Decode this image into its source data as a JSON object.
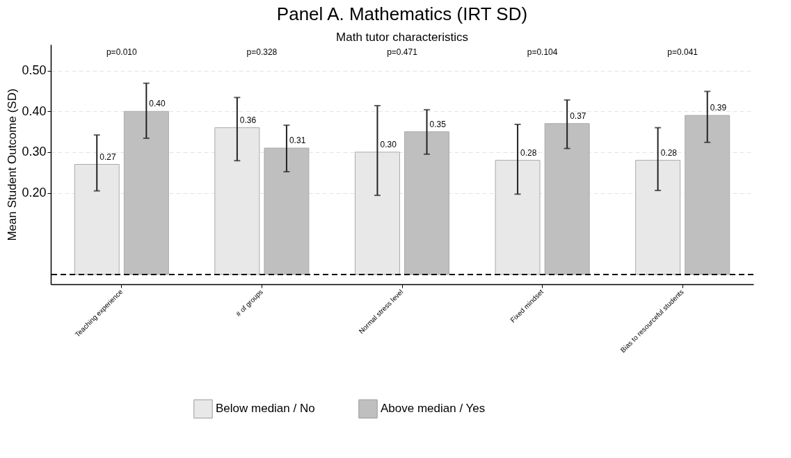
{
  "chart_data": {
    "type": "bar",
    "title": "Panel A. Mathematics (IRT SD)",
    "subtitle": "Math tutor characteristics",
    "ylabel": "Mean Student Outcome (SD)",
    "categories": [
      "Teaching experience",
      "# of groups",
      "Normal stress level",
      "Fixed mindset",
      "Bias to resourceful students"
    ],
    "series": [
      {
        "name": "Below median / No",
        "color": "#e8e8e8",
        "values": [
          0.27,
          0.36,
          0.3,
          0.28,
          0.28
        ],
        "value_labels": [
          "0.27",
          "0.36",
          "0.30",
          "0.28",
          "0.28"
        ],
        "errors": [
          [
            0.205,
            0.342
          ],
          [
            0.279,
            0.434
          ],
          [
            0.194,
            0.414
          ],
          [
            0.197,
            0.368
          ],
          [
            0.206,
            0.36
          ]
        ]
      },
      {
        "name": "Above median / Yes",
        "color": "#bfbfbf",
        "values": [
          0.4,
          0.31,
          0.35,
          0.37,
          0.39
        ],
        "value_labels": [
          "0.40",
          "0.31",
          "0.35",
          "0.37",
          "0.39"
        ],
        "errors": [
          [
            0.334,
            0.469
          ],
          [
            0.252,
            0.366
          ],
          [
            0.295,
            0.404
          ],
          [
            0.309,
            0.428
          ],
          [
            0.324,
            0.449
          ]
        ]
      }
    ],
    "ylim": [
      -0.024,
      0.564
    ],
    "yticks": [
      {
        "value": 0.2,
        "label": "0.20"
      },
      {
        "value": 0.3,
        "label": "0.30"
      },
      {
        "value": 0.4,
        "label": "0.40"
      },
      {
        "value": 0.5,
        "label": "0.50"
      }
    ],
    "grid": "y",
    "legend": "bottom",
    "ref_lines": [
      {
        "axis": "y",
        "value": 0,
        "label": null,
        "line_style": "dashed",
        "color": "#000000"
      }
    ],
    "annotations": [
      "p=0.010",
      "p=0.328",
      "p=0.471",
      "p=0.104",
      "p=0.041"
    ]
  }
}
